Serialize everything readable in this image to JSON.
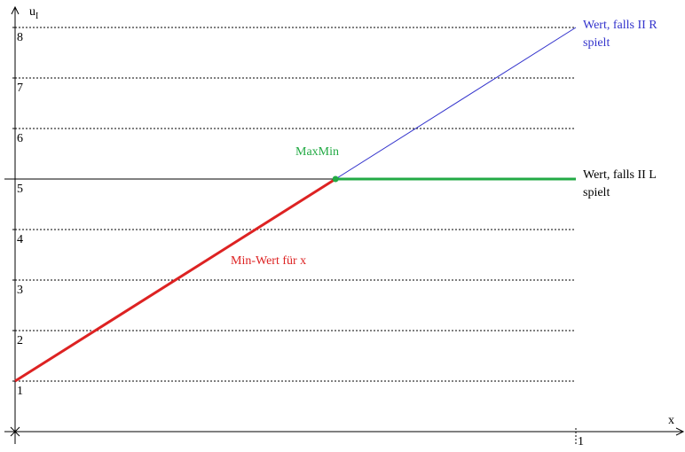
{
  "chart_data": {
    "type": "line",
    "xlabel": "x",
    "ylabel": "u",
    "ylabel_subscript": "I",
    "xlim": [
      0,
      1.2
    ],
    "ylim": [
      0,
      8.5
    ],
    "x_ticks": [
      {
        "value": 1,
        "label": "1"
      }
    ],
    "y_ticks": [
      {
        "value": 1,
        "label": "1"
      },
      {
        "value": 2,
        "label": "2"
      },
      {
        "value": 3,
        "label": "3"
      },
      {
        "value": 4,
        "label": "4"
      },
      {
        "value": 5,
        "label": "5"
      },
      {
        "value": 6,
        "label": "6"
      },
      {
        "value": 7,
        "label": "7"
      },
      {
        "value": 8,
        "label": "8"
      }
    ],
    "grid": true,
    "series": [
      {
        "name": "Wert, falls II R spielt",
        "label_lines": [
          "Wert, falls II R",
          "spielt"
        ],
        "points": [
          [
            0,
            1
          ],
          [
            1,
            8
          ]
        ],
        "color": "#3333cc"
      },
      {
        "name": "Wert, falls II L spielt",
        "label_lines": [
          "Wert, falls II L",
          "spielt"
        ],
        "points": [
          [
            0,
            5
          ],
          [
            1,
            5
          ]
        ],
        "color": "#000000"
      },
      {
        "name": "Min-Wert für x",
        "points": [
          [
            0,
            1
          ],
          [
            0.5714,
            5
          ]
        ],
        "color": "#dd2222"
      },
      {
        "name": "",
        "points": [
          [
            0.5714,
            5
          ],
          [
            1,
            5
          ]
        ],
        "color": "#22aa44"
      }
    ],
    "annotations": [
      {
        "text": "MaxMin",
        "point": [
          0.5714,
          5
        ],
        "color": "#22aa44"
      },
      {
        "text": "Min-Wert für x",
        "color": "#dd2222"
      }
    ]
  }
}
